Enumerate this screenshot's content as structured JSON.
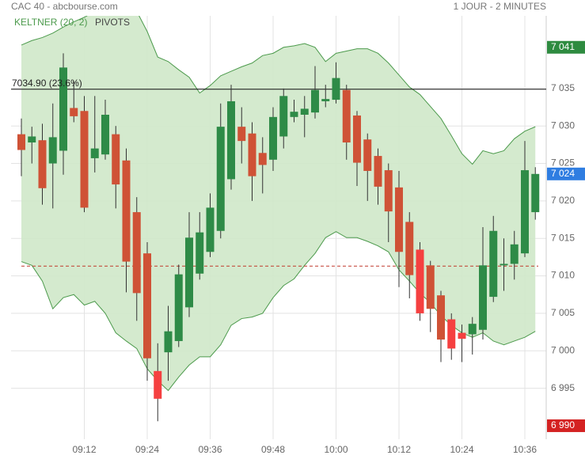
{
  "chart_data": {
    "type": "candlestick",
    "title": "CAC 40 - abcbourse.com",
    "subtitle": "1 JOUR - 2 MINUTES",
    "categories": [
      null,
      null,
      null,
      null,
      null,
      null,
      "09:12",
      null,
      null,
      null,
      null,
      null,
      "09:24",
      null,
      null,
      null,
      null,
      null,
      "09:36",
      null,
      null,
      null,
      null,
      null,
      "09:48",
      null,
      null,
      null,
      null,
      null,
      "10:00",
      null,
      null,
      null,
      null,
      null,
      "10:12",
      null,
      null,
      null,
      null,
      null,
      "10:24",
      null,
      null,
      null,
      null,
      null,
      "10:36",
      null
    ],
    "open": [
      7028.9,
      7027.8,
      7028.1,
      7025.0,
      7026.7,
      7032.4,
      7032.0,
      7025.7,
      7026.2,
      7028.9,
      7025.4,
      7018.5,
      7013.0,
      6997.3,
      6999.8,
      7001.3,
      7005.8,
      7010.3,
      7013.2,
      7016.0,
      7022.9,
      7029.9,
      7029.0,
      7026.4,
      7025.5,
      7028.6,
      7031.2,
      7031.5,
      7031.8,
      7033.3,
      7033.5,
      7034.8,
      7031.4,
      7028.2,
      7026.0,
      7024.1,
      7021.8,
      7017.2,
      7013.5,
      7011.4,
      7007.4,
      7004.2,
      7002.4,
      7002.2,
      7002.8,
      7007.2,
      7011.4,
      7011.6,
      7013.0,
      7018.5
    ],
    "high": [
      7031.0,
      7029.9,
      7030.3,
      7033.0,
      7039.7,
      7036.0,
      7034.0,
      7034.0,
      7033.5,
      7030.0,
      7027.0,
      7020.5,
      7014.5,
      7001.0,
      7006.0,
      7011.5,
      7018.5,
      7018.5,
      7021.0,
      7033.0,
      7035.5,
      7032.5,
      7030.5,
      7028.5,
      7032.5,
      7035.0,
      7033.5,
      7034.0,
      7038.0,
      7035.5,
      7038.5,
      7035.5,
      7032.0,
      7029.0,
      7027.0,
      7025.0,
      7024.0,
      7018.5,
      7014.5,
      7012.0,
      7008.0,
      7005.0,
      7003.5,
      7004.5,
      7016.5,
      7018.0,
      7015.0,
      7016.0,
      7028.0,
      7024.5
    ],
    "low": [
      7023.3,
      7025.0,
      7019.5,
      7019.0,
      7023.5,
      7030.5,
      7018.5,
      7023.8,
      7025.5,
      7019.0,
      7007.8,
      7004.0,
      6996.0,
      6990.6,
      6996.0,
      7000.5,
      7004.5,
      7009.5,
      7012.5,
      7015.0,
      7021.5,
      7025.0,
      7020.0,
      7021.0,
      7024.0,
      7027.0,
      7030.5,
      7028.5,
      7031.0,
      7032.5,
      7033.0,
      7025.5,
      7022.0,
      7020.0,
      7019.5,
      7014.5,
      7008.5,
      7007.0,
      7004.0,
      7002.5,
      6998.5,
      6998.8,
      6998.5,
      6999.5,
      7001.5,
      7006.5,
      7008.0,
      7009.5,
      7012.5,
      7017.5
    ],
    "close": [
      7026.8,
      7028.6,
      7021.7,
      7028.5,
      7037.8,
      7031.3,
      7019.1,
      7027.0,
      7031.5,
      7022.2,
      7011.9,
      7007.7,
      6999.0,
      6993.6,
      7002.6,
      7010.2,
      7015.1,
      7015.8,
      7019.1,
      7029.9,
      7033.3,
      7028.0,
      7023.3,
      7024.8,
      7031.2,
      7034.0,
      7031.9,
      7032.3,
      7034.8,
      7033.6,
      7036.4,
      7027.8,
      7025.1,
      7024.0,
      7021.9,
      7018.6,
      7013.2,
      7010.1,
      7005.0,
      7005.6,
      7001.5,
      7000.3,
      7001.6,
      7003.6,
      7011.4,
      7016.0,
      7011.6,
      7014.2,
      7024.1,
      7023.6
    ],
    "colors": [
      "#cf5236",
      "#2e8b47",
      "#cf5236",
      "#2e8b47",
      "#2e8b47",
      "#cf5236",
      "#cf5236",
      "#2e8b47",
      "#2e8b47",
      "#cf5236",
      "#cf5236",
      "#cf5236",
      "#cf5236",
      "#f54040",
      "#2e8b47",
      "#2e8b47",
      "#2e8b47",
      "#2e8b47",
      "#2e8b47",
      "#2e8b47",
      "#2e8b47",
      "#cf5236",
      "#cf5236",
      "#cf5236",
      "#2e8b47",
      "#2e8b47",
      "#2e8b47",
      "#2e8b47",
      "#2e8b47",
      "#2e8b47",
      "#2e8b47",
      "#cf5236",
      "#cf5236",
      "#cf5236",
      "#cf5236",
      "#cf5236",
      "#cf5236",
      "#cf5236",
      "#f54040",
      "#cf5236",
      "#cf5236",
      "#f54040",
      "#f54040",
      "#2e8b47",
      "#2e8b47",
      "#2e8b47",
      "#2e8b47",
      "#2e8b47",
      "#2e8b47",
      "#2e8b47"
    ],
    "keltner": {
      "name": "KELTNER (20, 2)",
      "color": "#4c9a4c",
      "fill": "#cfe8c9",
      "upper": [
        7040.8,
        7041.4,
        7041.8,
        7042.4,
        7043.2,
        7043.9,
        7044.5,
        7045.3,
        7046.0,
        7046.5,
        7046.5,
        7045.3,
        7042.6,
        7039.2,
        7038.6,
        7037.5,
        7036.5,
        7034.4,
        7035.4,
        7036.7,
        7037.3,
        7037.9,
        7038.4,
        7039.4,
        7039.7,
        7040.5,
        7040.7,
        7041.0,
        7040.5,
        7038.6,
        7039.7,
        7040.0,
        7040.3,
        7040.3,
        7039.7,
        7038.4,
        7036.8,
        7035.2,
        7034.2,
        7032.6,
        7031.0,
        7028.7,
        7026.3,
        7024.9,
        7026.7,
        7026.3,
        7026.7,
        7028.3,
        7029.3,
        7029.9
      ],
      "lower": [
        7011.9,
        7011.4,
        7009.3,
        7005.6,
        7007.1,
        7007.5,
        7006.1,
        7006.6,
        7005.0,
        7002.4,
        7001.3,
        7000.3,
        6997.6,
        6996.0,
        6994.7,
        6996.5,
        6998.1,
        6999.2,
        6999.2,
        7000.8,
        7003.4,
        7004.3,
        7004.5,
        7005.0,
        7007.1,
        7008.7,
        7009.6,
        7011.4,
        7013.0,
        7015.1,
        7015.9,
        7015.1,
        7015.1,
        7014.6,
        7014.0,
        7013.2,
        7010.8,
        7009.3,
        7007.7,
        7006.4,
        7004.7,
        7003.4,
        7002.4,
        7001.8,
        7002.4,
        7001.3,
        7000.8,
        7001.3,
        7001.8,
        7002.6
      ]
    },
    "pivots_label": "PIVOTS",
    "pivot": {
      "value": 7034.9,
      "label": "7034.90  (23.6%)"
    },
    "support": {
      "value": 7011.3,
      "color": "#c0392b"
    },
    "markers": [
      {
        "value": 7040.5,
        "label": "7 041",
        "color": "#2e8b40"
      },
      {
        "value": 7023.6,
        "label": "7 024",
        "color": "#2f7de1"
      },
      {
        "value": 6990,
        "label": "6 990",
        "color": "#d42222"
      }
    ],
    "ylim": [
      6988.2,
      7044.7
    ],
    "yticks": [
      {
        "value": 6995,
        "label": "6 995"
      },
      {
        "value": 7000,
        "label": "7 000"
      },
      {
        "value": 7005,
        "label": "7 005"
      },
      {
        "value": 7010,
        "label": "7 010"
      },
      {
        "value": 7015,
        "label": "7 015"
      },
      {
        "value": 7020,
        "label": "7 020"
      },
      {
        "value": 7025,
        "label": "7 025"
      },
      {
        "value": 7030,
        "label": "7 030"
      },
      {
        "value": 7035,
        "label": "7 035"
      }
    ],
    "grid": true
  }
}
